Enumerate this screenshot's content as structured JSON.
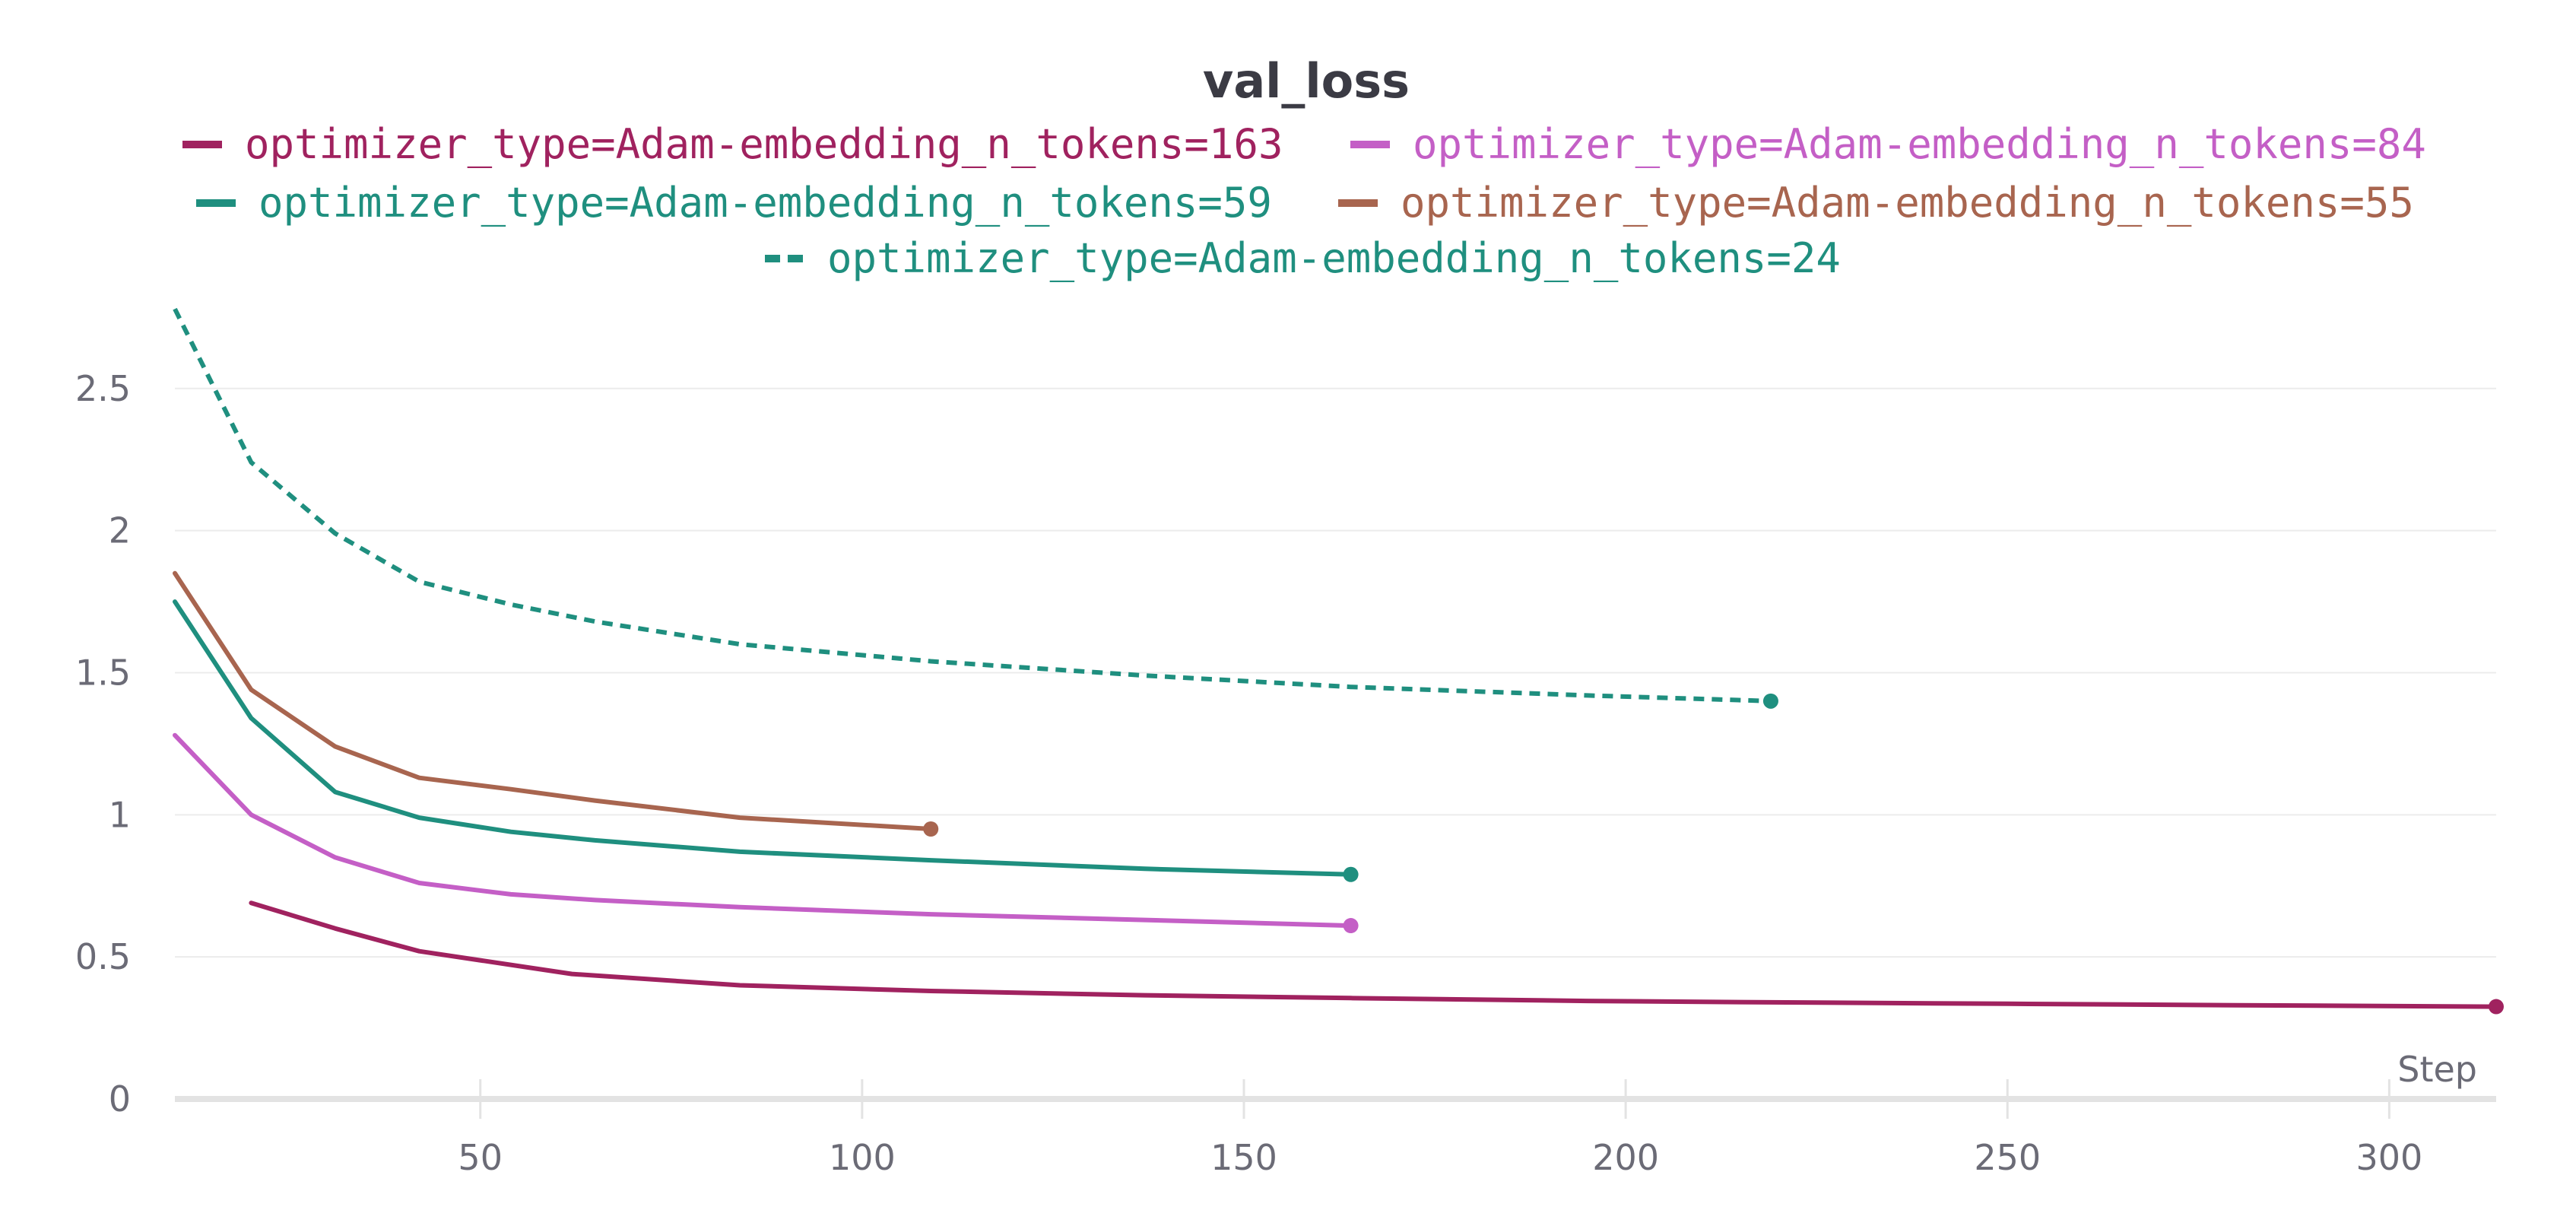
{
  "chart_data": {
    "type": "line",
    "title": "val_loss",
    "xlabel": "Step",
    "ylabel": "",
    "xlim": [
      10,
      314
    ],
    "ylim": [
      0,
      2.85
    ],
    "x_ticks": [
      50,
      100,
      150,
      200,
      250,
      300
    ],
    "x_tick_labels": [
      "50",
      "100",
      "150",
      "200",
      "250",
      "300"
    ],
    "y_ticks": [
      0,
      0.5,
      1,
      1.5,
      2,
      2.5
    ],
    "y_tick_labels": [
      "0",
      "0.5",
      "1",
      "1.5",
      "2",
      "2.5"
    ],
    "grid": true,
    "legend_position": "top-center",
    "series": [
      {
        "name": "optimizer_type=Adam-embedding_n_tokens=163",
        "color": "#a0225f",
        "dash": false,
        "x": [
          20,
          31,
          42,
          62,
          84,
          109,
          137,
          164,
          195,
          219,
          250,
          280,
          314
        ],
        "y": [
          0.69,
          0.6,
          0.52,
          0.44,
          0.4,
          0.38,
          0.365,
          0.355,
          0.345,
          0.34,
          0.335,
          0.33,
          0.325
        ]
      },
      {
        "name": "optimizer_type=Adam-embedding_n_tokens=84",
        "color": "#c45fc6",
        "dash": false,
        "x": [
          10,
          20,
          31,
          42,
          54,
          65,
          84,
          109,
          137,
          164
        ],
        "y": [
          1.28,
          1.0,
          0.85,
          0.76,
          0.72,
          0.7,
          0.675,
          0.65,
          0.63,
          0.61
        ]
      },
      {
        "name": "optimizer_type=Adam-embedding_n_tokens=59",
        "color": "#1f8f7f",
        "dash": false,
        "x": [
          10,
          20,
          31,
          42,
          54,
          65,
          84,
          109,
          137,
          164
        ],
        "y": [
          1.75,
          1.34,
          1.08,
          0.99,
          0.94,
          0.91,
          0.87,
          0.84,
          0.81,
          0.79
        ]
      },
      {
        "name": "optimizer_type=Adam-embedding_n_tokens=55",
        "color": "#a8654f",
        "dash": false,
        "x": [
          10,
          20,
          31,
          42,
          54,
          65,
          84,
          109
        ],
        "y": [
          1.85,
          1.44,
          1.24,
          1.13,
          1.09,
          1.05,
          0.99,
          0.95
        ]
      },
      {
        "name": "optimizer_type=Adam-embedding_n_tokens=24",
        "color": "#1f8f7f",
        "dash": true,
        "x": [
          10,
          20,
          31,
          42,
          54,
          65,
          84,
          109,
          137,
          164,
          195,
          219
        ],
        "y": [
          2.78,
          2.24,
          1.99,
          1.82,
          1.74,
          1.68,
          1.6,
          1.54,
          1.49,
          1.45,
          1.42,
          1.4
        ]
      }
    ]
  }
}
